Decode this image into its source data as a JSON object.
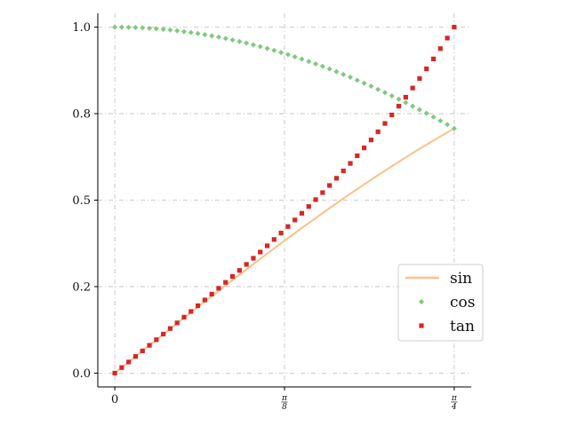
{
  "chart_data": {
    "type": "line",
    "x_range": [
      0,
      0.7853981634
    ],
    "ylim": [
      -0.04,
      1.04
    ],
    "grid": true,
    "legend_placement": "right",
    "x_ticks": [
      {
        "value": 0,
        "label": "0"
      },
      {
        "value": 0.3926990817,
        "num": "π",
        "den": "8"
      },
      {
        "value": 0.7853981634,
        "num": "π",
        "den": "4"
      }
    ],
    "y_ticks": [
      {
        "value": 0.0,
        "label": "0.0"
      },
      {
        "value": 0.25,
        "label": "0.2"
      },
      {
        "value": 0.5,
        "label": "0.5"
      },
      {
        "value": 0.75,
        "label": "0.8"
      },
      {
        "value": 1.0,
        "label": "1.0"
      }
    ],
    "series": [
      {
        "name": "sin",
        "function": "sin",
        "style": "line",
        "color": "#fdc086"
      },
      {
        "name": "cos",
        "function": "cos",
        "style": "diamond-markers",
        "color": "#7fc97f",
        "points": 50
      },
      {
        "name": "tan",
        "function": "tan",
        "style": "square-markers",
        "color": "#d62728",
        "points": 50
      }
    ]
  }
}
